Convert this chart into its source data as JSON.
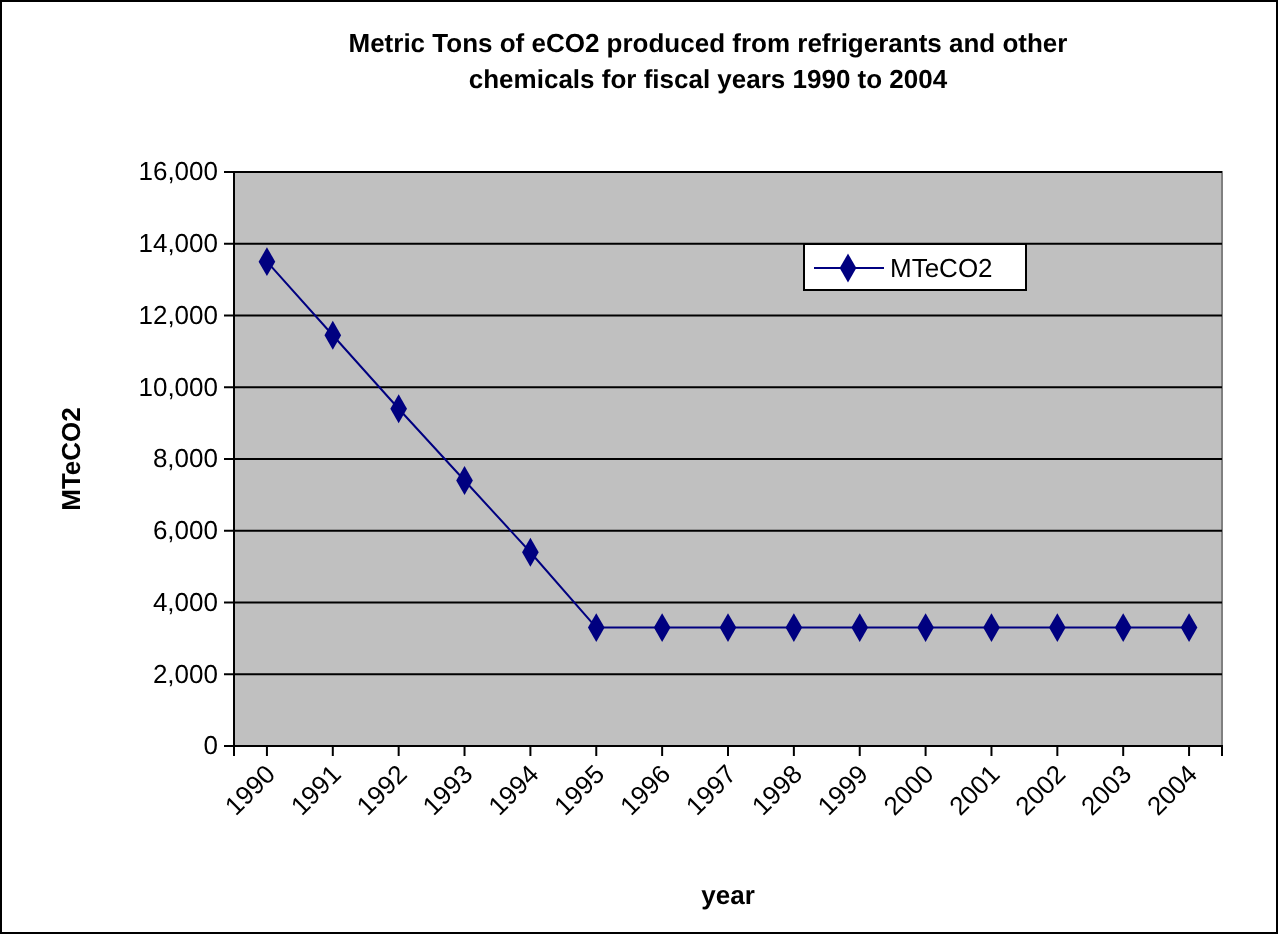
{
  "chart_data": {
    "type": "line",
    "title": "Metric Tons of eCO2 produced from refrigerants and other chemicals for fiscal years 1990 to 2004",
    "xlabel": "year",
    "ylabel": "MTeCO2",
    "categories": [
      "1990",
      "1991",
      "1992",
      "1993",
      "1994",
      "1995",
      "1996",
      "1997",
      "1998",
      "1999",
      "2000",
      "2001",
      "2002",
      "2003",
      "2004"
    ],
    "series": [
      {
        "name": "MTeCO2",
        "color": "#000080",
        "values": [
          13500,
          11450,
          9400,
          7400,
          5400,
          3300,
          3300,
          3300,
          3300,
          3300,
          3300,
          3300,
          3300,
          3300,
          3300
        ]
      }
    ],
    "ylim": [
      0,
      16000
    ],
    "yticks": [
      {
        "value": 0,
        "label": "0"
      },
      {
        "value": 2000,
        "label": "2,000"
      },
      {
        "value": 4000,
        "label": "4,000"
      },
      {
        "value": 6000,
        "label": "6,000"
      },
      {
        "value": 8000,
        "label": "8,000"
      },
      {
        "value": 10000,
        "label": "10,000"
      },
      {
        "value": 12000,
        "label": "12,000"
      },
      {
        "value": 14000,
        "label": "14,000"
      },
      {
        "value": 16000,
        "label": "16,000"
      }
    ],
    "grid": "y",
    "legend": "top right",
    "marker": "diamond",
    "line_style": "solid"
  }
}
